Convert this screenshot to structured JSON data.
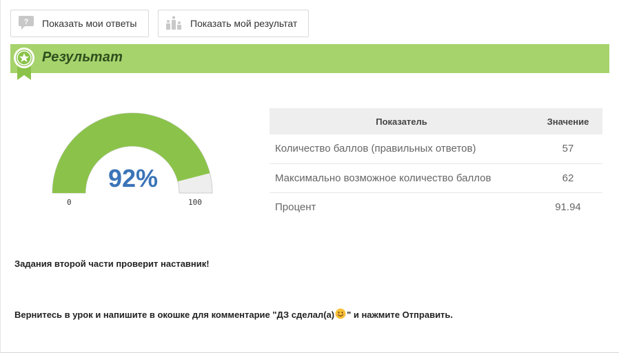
{
  "toolbar": {
    "show_answers_label": "Показать мои ответы",
    "show_result_label": "Показать мой результат"
  },
  "section": {
    "title": "Результат"
  },
  "gauge": {
    "value": 92,
    "value_label": "92%",
    "min_label": "0",
    "max_label": "100",
    "fill_color": "#8bc34a",
    "track_color": "#eeeeee"
  },
  "stats": {
    "headers": {
      "indicator": "Показатель",
      "value": "Значение"
    },
    "rows": [
      {
        "indicator": "Количество баллов (правильных ответов)",
        "value": "57"
      },
      {
        "indicator": "Максимально возможное количество баллов",
        "value": "62"
      },
      {
        "indicator": "Процент",
        "value": "91.94"
      }
    ]
  },
  "notes": {
    "line1": "Задания второй части проверит наставник!",
    "line2_before": "Вернитесь в урок и напишите в окошке для комментарие \"ДЗ сделал(а)",
    "line2_after": "\" и нажмите Отправить."
  },
  "colors": {
    "accent_green": "#a6d36c",
    "title_green": "#2f4f1e",
    "value_blue": "#3b74b8"
  },
  "icons": {
    "show_answers": "question-bubble-icon",
    "show_result": "podium-icon",
    "section": "award-ribbon-icon",
    "inline": "smiley-emoji-icon"
  }
}
